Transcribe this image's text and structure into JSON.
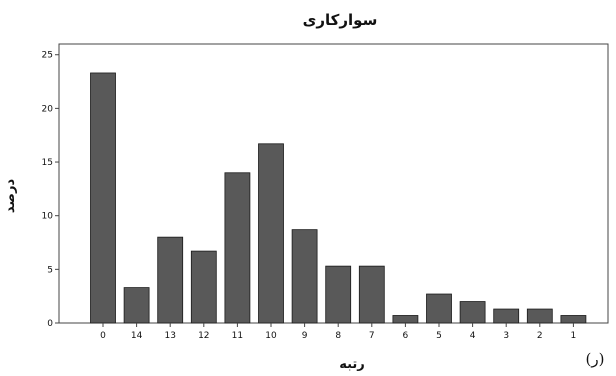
{
  "chart_data": {
    "type": "bar",
    "title": "سوارکاری",
    "xlabel": "رتبه",
    "ylabel": "درصد",
    "categories": [
      "0",
      "14",
      "13",
      "12",
      "11",
      "10",
      "9",
      "8",
      "7",
      "6",
      "5",
      "4",
      "3",
      "2",
      "1"
    ],
    "values": [
      23.3,
      3.3,
      8.0,
      6.7,
      14.0,
      16.7,
      8.7,
      5.3,
      5.3,
      0.7,
      2.7,
      2.0,
      1.3,
      1.3,
      0.7
    ],
    "ylim": [
      0,
      26
    ],
    "yticks": [
      0,
      5,
      10,
      15,
      20,
      25
    ],
    "grid": false,
    "legend": "none",
    "bar_color": "#595959",
    "bar_edge_color": "#1a1a1a"
  },
  "panel_label": "(ر)"
}
